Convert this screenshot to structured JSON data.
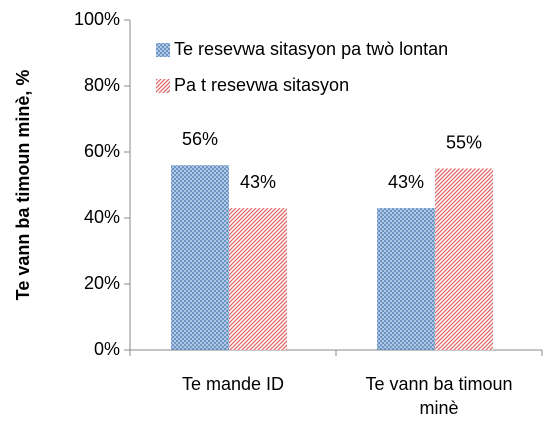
{
  "chart_data": {
    "type": "bar",
    "y_label": "Te vann ba timoun minè, %",
    "categories": [
      "Te mande ID",
      "Te vann ba timoun minè"
    ],
    "series": [
      {
        "name": "Te resevwa sitasyon pa twò lontan",
        "color": "#4f81bd",
        "values": [
          56,
          43
        ],
        "value_labels": [
          "56%",
          "43%"
        ]
      },
      {
        "name": "Pa t resevwa sitasyon",
        "color": "#e06666",
        "values": [
          43,
          55
        ],
        "value_labels": [
          "43%",
          "55%"
        ]
      }
    ],
    "ylim": [
      0,
      100
    ],
    "yticks": [
      {
        "value": 0,
        "label": "0%"
      },
      {
        "value": 20,
        "label": "20%"
      },
      {
        "value": 40,
        "label": "40%"
      },
      {
        "value": 60,
        "label": "60%"
      },
      {
        "value": 80,
        "label": "80%"
      },
      {
        "value": 100,
        "label": "100%"
      }
    ],
    "grid": false,
    "legend": "top-right"
  }
}
